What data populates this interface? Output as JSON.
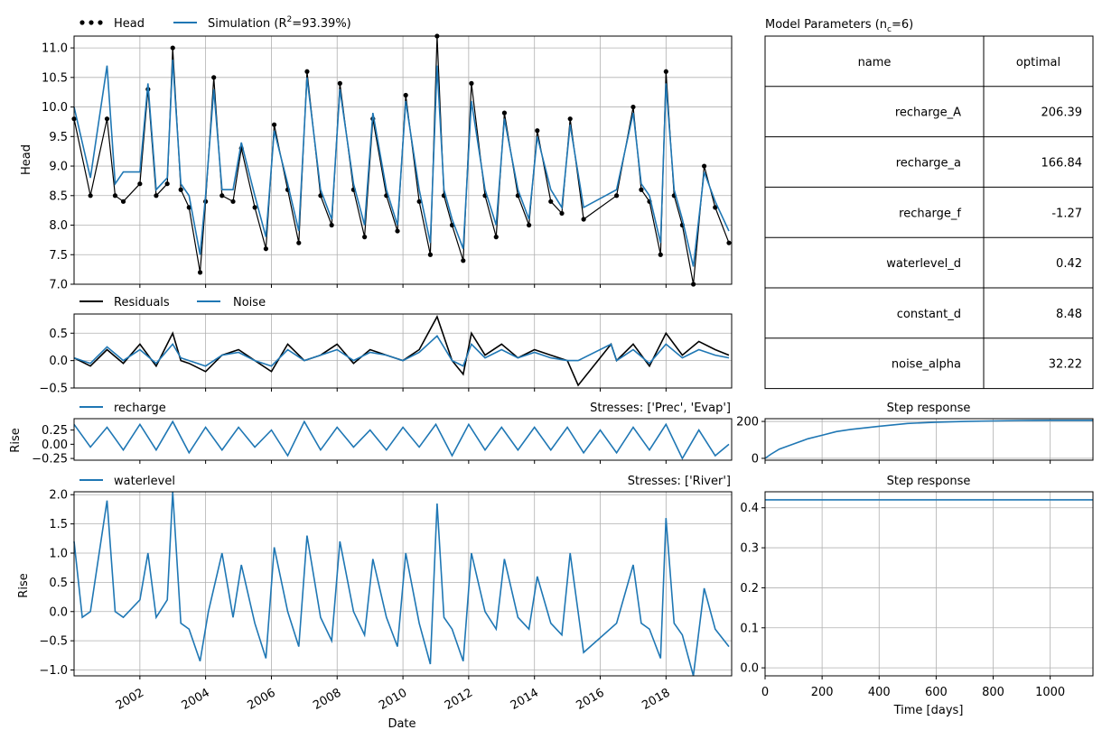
{
  "colors": {
    "observed": "#000000",
    "simulated": "#1f77b4",
    "grid": "#b0b0b0",
    "axis": "#000000"
  },
  "chart_data": [
    {
      "type": "line",
      "panel": "head",
      "ylabel": "Head",
      "xlim": [
        "2000-01-01",
        "2019-12-31"
      ],
      "ylim": [
        7.0,
        11.2
      ],
      "yticks": [
        7.0,
        7.5,
        8.0,
        8.5,
        9.0,
        9.5,
        10.0,
        10.5,
        11.0
      ],
      "ytick_labels": [
        "7.0",
        "7.5",
        "8.0",
        "8.5",
        "9.0",
        "9.5",
        "10.0",
        "10.5",
        "11.0"
      ],
      "grid": true,
      "legend": [
        "Head",
        "Simulation ($R^2$=93.39%)"
      ],
      "legend_display": [
        "Head",
        "Simulation (R",
        "2",
        "=93.39%)"
      ],
      "series": [
        {
          "name": "Head",
          "style": "markers",
          "x": [
            "2000-01-01",
            "2000-07-01",
            "2001-01-01",
            "2001-04-01",
            "2001-07-01",
            "2002-01-01",
            "2002-04-01",
            "2002-07-01",
            "2002-11-01",
            "2003-01-01",
            "2003-04-01",
            "2003-07-01",
            "2003-11-01",
            "2004-01-01",
            "2004-04-01",
            "2004-07-01",
            "2004-11-01",
            "2005-02-01",
            "2005-07-01",
            "2005-11-01",
            "2006-02-01",
            "2006-07-01",
            "2006-11-01",
            "2007-02-01",
            "2007-07-01",
            "2007-11-01",
            "2008-02-01",
            "2008-07-01",
            "2008-11-01",
            "2009-02-01",
            "2009-07-01",
            "2009-11-01",
            "2010-02-01",
            "2010-07-01",
            "2010-11-01",
            "2011-01-15",
            "2011-04-01",
            "2011-07-01",
            "2011-11-01",
            "2012-02-01",
            "2012-07-01",
            "2012-11-01",
            "2013-02-01",
            "2013-07-01",
            "2013-11-01",
            "2014-02-01",
            "2014-07-01",
            "2014-11-01",
            "2015-02-01",
            "2015-07-01",
            "2016-07-01",
            "2017-01-01",
            "2017-04-01",
            "2017-07-01",
            "2017-11-01",
            "2018-01-01",
            "2018-04-01",
            "2018-07-01",
            "2018-11-01",
            "2019-03-01",
            "2019-07-01",
            "2019-12-01"
          ],
          "values": [
            9.8,
            8.5,
            9.8,
            8.5,
            8.4,
            8.7,
            10.3,
            8.5,
            8.7,
            11.0,
            8.6,
            8.3,
            7.2,
            8.4,
            10.5,
            8.5,
            8.4,
            9.3,
            8.3,
            7.6,
            9.7,
            8.6,
            7.7,
            10.6,
            8.5,
            8.0,
            10.4,
            8.6,
            7.8,
            9.8,
            8.5,
            7.9,
            10.2,
            8.4,
            7.5,
            11.2,
            8.5,
            8.0,
            7.4,
            10.4,
            8.5,
            7.8,
            9.9,
            8.5,
            8.0,
            9.6,
            8.4,
            8.2,
            9.8,
            8.1,
            8.5,
            10.0,
            8.6,
            8.4,
            7.5,
            10.6,
            8.5,
            8.0,
            7.0,
            9.0,
            8.3,
            7.7
          ]
        },
        {
          "name": "Simulation ($R^2$=93.39%)",
          "style": "line",
          "x": [
            "2000-01-01",
            "2000-07-01",
            "2001-01-01",
            "2001-04-01",
            "2001-07-01",
            "2002-01-01",
            "2002-04-01",
            "2002-07-01",
            "2002-11-01",
            "2003-01-01",
            "2003-04-01",
            "2003-07-01",
            "2003-11-01",
            "2004-01-01",
            "2004-04-01",
            "2004-07-01",
            "2004-11-01",
            "2005-02-01",
            "2005-07-01",
            "2005-11-01",
            "2006-02-01",
            "2006-07-01",
            "2006-11-01",
            "2007-02-01",
            "2007-07-01",
            "2007-11-01",
            "2008-02-01",
            "2008-07-01",
            "2008-11-01",
            "2009-02-01",
            "2009-07-01",
            "2009-11-01",
            "2010-02-01",
            "2010-07-01",
            "2010-11-01",
            "2011-01-15",
            "2011-04-01",
            "2011-07-01",
            "2011-11-01",
            "2012-02-01",
            "2012-07-01",
            "2012-11-01",
            "2013-02-01",
            "2013-07-01",
            "2013-11-01",
            "2014-02-01",
            "2014-07-01",
            "2014-11-01",
            "2015-02-01",
            "2015-07-01",
            "2016-07-01",
            "2017-01-01",
            "2017-04-01",
            "2017-07-01",
            "2017-11-01",
            "2018-01-01",
            "2018-04-01",
            "2018-07-01",
            "2018-11-01",
            "2019-03-01",
            "2019-07-01",
            "2019-12-01"
          ],
          "values": [
            10.0,
            8.8,
            10.7,
            8.7,
            8.9,
            8.9,
            10.4,
            8.6,
            8.8,
            10.8,
            8.7,
            8.5,
            7.5,
            8.5,
            10.3,
            8.6,
            8.6,
            9.4,
            8.5,
            7.8,
            9.6,
            8.7,
            7.9,
            10.5,
            8.6,
            8.1,
            10.3,
            8.7,
            8.0,
            9.9,
            8.6,
            8.0,
            10.1,
            8.6,
            7.7,
            10.7,
            8.6,
            8.1,
            7.6,
            10.1,
            8.6,
            8.0,
            9.8,
            8.6,
            8.1,
            9.5,
            8.6,
            8.3,
            9.7,
            8.3,
            8.6,
            9.9,
            8.7,
            8.5,
            7.7,
            10.4,
            8.6,
            8.1,
            7.3,
            8.9,
            8.4,
            7.9
          ]
        }
      ]
    },
    {
      "type": "line",
      "panel": "residuals",
      "xlim": [
        "2000-01-01",
        "2019-12-31"
      ],
      "ylim": [
        -0.5,
        0.85
      ],
      "yticks": [
        -0.5,
        0.0,
        0.5
      ],
      "ytick_labels": [
        "−0.5",
        "0.0",
        "0.5"
      ],
      "grid": true,
      "legend": [
        "Residuals",
        "Noise"
      ],
      "series": [
        {
          "name": "Residuals",
          "x": [
            "2000-01-01",
            "2000-07-01",
            "2001-01-01",
            "2001-07-01",
            "2002-01-01",
            "2002-07-01",
            "2003-01-01",
            "2003-04-01",
            "2003-07-01",
            "2004-01-01",
            "2004-07-01",
            "2005-01-01",
            "2005-07-01",
            "2006-01-01",
            "2006-07-01",
            "2007-01-01",
            "2007-07-01",
            "2008-01-01",
            "2008-07-01",
            "2009-01-01",
            "2009-07-01",
            "2010-01-01",
            "2010-07-01",
            "2011-01-15",
            "2011-07-01",
            "2011-11-01",
            "2012-02-01",
            "2012-07-01",
            "2013-01-01",
            "2013-07-01",
            "2014-01-01",
            "2014-07-01",
            "2015-01-01",
            "2015-05-01",
            "2016-05-01",
            "2016-07-01",
            "2017-01-01",
            "2017-07-01",
            "2018-01-01",
            "2018-07-01",
            "2019-01-01",
            "2019-07-01",
            "2019-12-01"
          ],
          "values": [
            0.05,
            -0.1,
            0.2,
            -0.05,
            0.3,
            -0.1,
            0.5,
            0.0,
            -0.05,
            -0.2,
            0.1,
            0.2,
            0.0,
            -0.2,
            0.3,
            0.0,
            0.1,
            0.3,
            -0.05,
            0.2,
            0.1,
            0.0,
            0.2,
            0.8,
            0.0,
            -0.25,
            0.5,
            0.1,
            0.3,
            0.05,
            0.2,
            0.1,
            0.0,
            -0.45,
            0.3,
            0.0,
            0.3,
            -0.1,
            0.5,
            0.1,
            0.35,
            0.2,
            0.1
          ]
        },
        {
          "name": "Noise",
          "x": [
            "2000-01-01",
            "2000-07-01",
            "2001-01-01",
            "2001-07-01",
            "2002-01-01",
            "2002-07-01",
            "2003-01-01",
            "2003-04-01",
            "2003-07-01",
            "2004-01-01",
            "2004-07-01",
            "2005-01-01",
            "2005-07-01",
            "2006-01-01",
            "2006-07-01",
            "2007-01-01",
            "2007-07-01",
            "2008-01-01",
            "2008-07-01",
            "2009-01-01",
            "2009-07-01",
            "2010-01-01",
            "2010-07-01",
            "2011-01-15",
            "2011-07-01",
            "2011-11-01",
            "2012-02-01",
            "2012-07-01",
            "2013-01-01",
            "2013-07-01",
            "2014-01-01",
            "2014-07-01",
            "2015-01-01",
            "2015-05-01",
            "2016-05-01",
            "2016-07-01",
            "2017-01-01",
            "2017-07-01",
            "2018-01-01",
            "2018-07-01",
            "2019-01-01",
            "2019-07-01",
            "2019-12-01"
          ],
          "values": [
            0.05,
            -0.05,
            0.25,
            0.0,
            0.2,
            -0.05,
            0.3,
            0.05,
            0.0,
            -0.1,
            0.1,
            0.15,
            0.0,
            -0.1,
            0.2,
            0.0,
            0.1,
            0.2,
            0.0,
            0.15,
            0.1,
            0.0,
            0.15,
            0.45,
            0.0,
            -0.1,
            0.3,
            0.05,
            0.2,
            0.05,
            0.15,
            0.05,
            0.0,
            0.0,
            0.3,
            0.0,
            0.2,
            -0.05,
            0.3,
            0.05,
            0.2,
            0.1,
            0.05
          ]
        }
      ]
    },
    {
      "type": "line",
      "panel": "recharge",
      "ylabel": "Rise",
      "xlim": [
        "2000-01-01",
        "2019-12-31"
      ],
      "ylim": [
        -0.28,
        0.45
      ],
      "yticks": [
        -0.25,
        0.0,
        0.25
      ],
      "ytick_labels": [
        "−0.25",
        "0.00",
        "0.25"
      ],
      "grid": false,
      "legend": [
        "recharge"
      ],
      "stress_label": "Stresses: ['Prec', 'Evap']",
      "series": [
        {
          "name": "recharge",
          "x": [
            "2000-01-01",
            "2000-07-01",
            "2001-01-01",
            "2001-07-01",
            "2002-01-01",
            "2002-07-01",
            "2003-01-01",
            "2003-07-01",
            "2004-01-01",
            "2004-07-01",
            "2005-01-01",
            "2005-07-01",
            "2006-01-01",
            "2006-07-01",
            "2007-01-01",
            "2007-07-01",
            "2008-01-01",
            "2008-07-01",
            "2009-01-01",
            "2009-07-01",
            "2010-01-01",
            "2010-07-01",
            "2011-01-01",
            "2011-07-01",
            "2012-01-01",
            "2012-07-01",
            "2013-01-01",
            "2013-07-01",
            "2014-01-01",
            "2014-07-01",
            "2015-01-01",
            "2015-07-01",
            "2016-01-01",
            "2016-07-01",
            "2017-01-01",
            "2017-07-01",
            "2018-01-01",
            "2018-07-01",
            "2019-01-01",
            "2019-07-01",
            "2019-12-01"
          ],
          "values": [
            0.35,
            -0.05,
            0.3,
            -0.1,
            0.35,
            -0.1,
            0.4,
            -0.15,
            0.3,
            -0.1,
            0.3,
            -0.05,
            0.25,
            -0.2,
            0.4,
            -0.1,
            0.3,
            -0.05,
            0.25,
            -0.1,
            0.3,
            -0.05,
            0.35,
            -0.2,
            0.35,
            -0.1,
            0.3,
            -0.1,
            0.3,
            -0.1,
            0.3,
            -0.15,
            0.25,
            -0.15,
            0.3,
            -0.1,
            0.35,
            -0.25,
            0.25,
            -0.2,
            0.0
          ]
        }
      ]
    },
    {
      "type": "line",
      "panel": "waterlevel",
      "ylabel": "Rise",
      "xlabel": "Date",
      "xlim": [
        "2000-01-01",
        "2019-12-31"
      ],
      "ylim": [
        -1.1,
        2.05
      ],
      "yticks": [
        -1.0,
        -0.5,
        0.0,
        0.5,
        1.0,
        1.5,
        2.0
      ],
      "ytick_labels": [
        "−1.0",
        "−0.5",
        "0.0",
        "0.5",
        "1.0",
        "1.5",
        "2.0"
      ],
      "xticks": [
        "2002-01-01",
        "2004-01-01",
        "2006-01-01",
        "2008-01-01",
        "2010-01-01",
        "2012-01-01",
        "2014-01-01",
        "2016-01-01",
        "2018-01-01"
      ],
      "xtick_labels": [
        "2002",
        "2004",
        "2006",
        "2008",
        "2010",
        "2012",
        "2014",
        "2016",
        "2018"
      ],
      "grid": true,
      "legend": [
        "waterlevel"
      ],
      "stress_label": "Stresses: ['River']",
      "series": [
        {
          "name": "waterlevel",
          "x": [
            "2000-01-01",
            "2000-04-01",
            "2000-07-01",
            "2001-01-01",
            "2001-04-01",
            "2001-07-01",
            "2002-01-01",
            "2002-04-01",
            "2002-07-01",
            "2002-11-01",
            "2003-01-01",
            "2003-04-01",
            "2003-07-01",
            "2003-11-01",
            "2004-02-01",
            "2004-07-01",
            "2004-11-01",
            "2005-02-01",
            "2005-07-01",
            "2005-11-01",
            "2006-02-01",
            "2006-07-01",
            "2006-11-01",
            "2007-02-01",
            "2007-07-01",
            "2007-11-01",
            "2008-02-01",
            "2008-07-01",
            "2008-11-01",
            "2009-02-01",
            "2009-07-01",
            "2009-11-01",
            "2010-02-01",
            "2010-07-01",
            "2010-11-01",
            "2011-01-15",
            "2011-04-01",
            "2011-07-01",
            "2011-11-01",
            "2012-02-01",
            "2012-07-01",
            "2012-11-01",
            "2013-02-01",
            "2013-07-01",
            "2013-11-01",
            "2014-02-01",
            "2014-07-01",
            "2014-11-01",
            "2015-02-01",
            "2015-07-01",
            "2016-07-01",
            "2017-01-01",
            "2017-04-01",
            "2017-07-01",
            "2017-11-01",
            "2018-01-01",
            "2018-04-01",
            "2018-07-01",
            "2018-11-01",
            "2019-03-01",
            "2019-07-01",
            "2019-12-01"
          ],
          "values": [
            1.2,
            -0.1,
            0.0,
            1.9,
            0.0,
            -0.1,
            0.2,
            1.0,
            -0.1,
            0.2,
            2.05,
            -0.2,
            -0.3,
            -0.85,
            0.0,
            1.0,
            -0.1,
            0.8,
            -0.2,
            -0.8,
            1.1,
            0.0,
            -0.6,
            1.3,
            -0.1,
            -0.5,
            1.2,
            0.0,
            -0.4,
            0.9,
            -0.1,
            -0.6,
            1.0,
            -0.2,
            -0.9,
            1.85,
            -0.1,
            -0.3,
            -0.85,
            1.0,
            0.0,
            -0.3,
            0.9,
            -0.1,
            -0.3,
            0.6,
            -0.2,
            -0.4,
            1.0,
            -0.7,
            -0.2,
            0.8,
            -0.2,
            -0.3,
            -0.8,
            1.6,
            -0.2,
            -0.4,
            -1.1,
            0.4,
            -0.3,
            -0.6
          ]
        }
      ]
    },
    {
      "type": "table",
      "panel": "parameters",
      "title": "Model Parameters ($n_c$=6)",
      "title_display": [
        "Model Parameters (n",
        "c",
        "=6)"
      ],
      "columns": [
        "name",
        "optimal"
      ],
      "rows": [
        [
          "recharge_A",
          "206.39"
        ],
        [
          "recharge_a",
          "166.84"
        ],
        [
          "recharge_f",
          "-1.27"
        ],
        [
          "waterlevel_d",
          "0.42"
        ],
        [
          "constant_d",
          "8.48"
        ],
        [
          "noise_alpha",
          "32.22"
        ]
      ]
    },
    {
      "type": "line",
      "panel": "step-response-recharge",
      "title": "Step response",
      "xlim": [
        0,
        1150
      ],
      "ylim": [
        -10,
        215
      ],
      "yticks": [
        0,
        200
      ],
      "ytick_labels": [
        "0",
        "200"
      ],
      "grid": true,
      "series": [
        {
          "x": [
            0,
            20,
            50,
            100,
            150,
            200,
            250,
            300,
            400,
            500,
            600,
            700,
            800,
            900,
            1000,
            1150
          ],
          "values": [
            0,
            22,
            50,
            78,
            106,
            125,
            145,
            157,
            174,
            189,
            196,
            200,
            203,
            205,
            206,
            206.39
          ]
        }
      ]
    },
    {
      "type": "line",
      "panel": "step-response-waterlevel",
      "title": "Step response",
      "xlabel": "Time [days]",
      "xlim": [
        0,
        1150
      ],
      "ylim": [
        -0.02,
        0.44
      ],
      "yticks": [
        0.0,
        0.1,
        0.2,
        0.3,
        0.4
      ],
      "ytick_labels": [
        "0.0",
        "0.1",
        "0.2",
        "0.3",
        "0.4"
      ],
      "xticks": [
        0,
        200,
        400,
        600,
        800,
        1000
      ],
      "xtick_labels": [
        "0",
        "200",
        "400",
        "600",
        "800",
        "1000"
      ],
      "grid": true,
      "series": [
        {
          "x": [
            0,
            1150
          ],
          "values": [
            0.42,
            0.42
          ]
        }
      ]
    }
  ]
}
